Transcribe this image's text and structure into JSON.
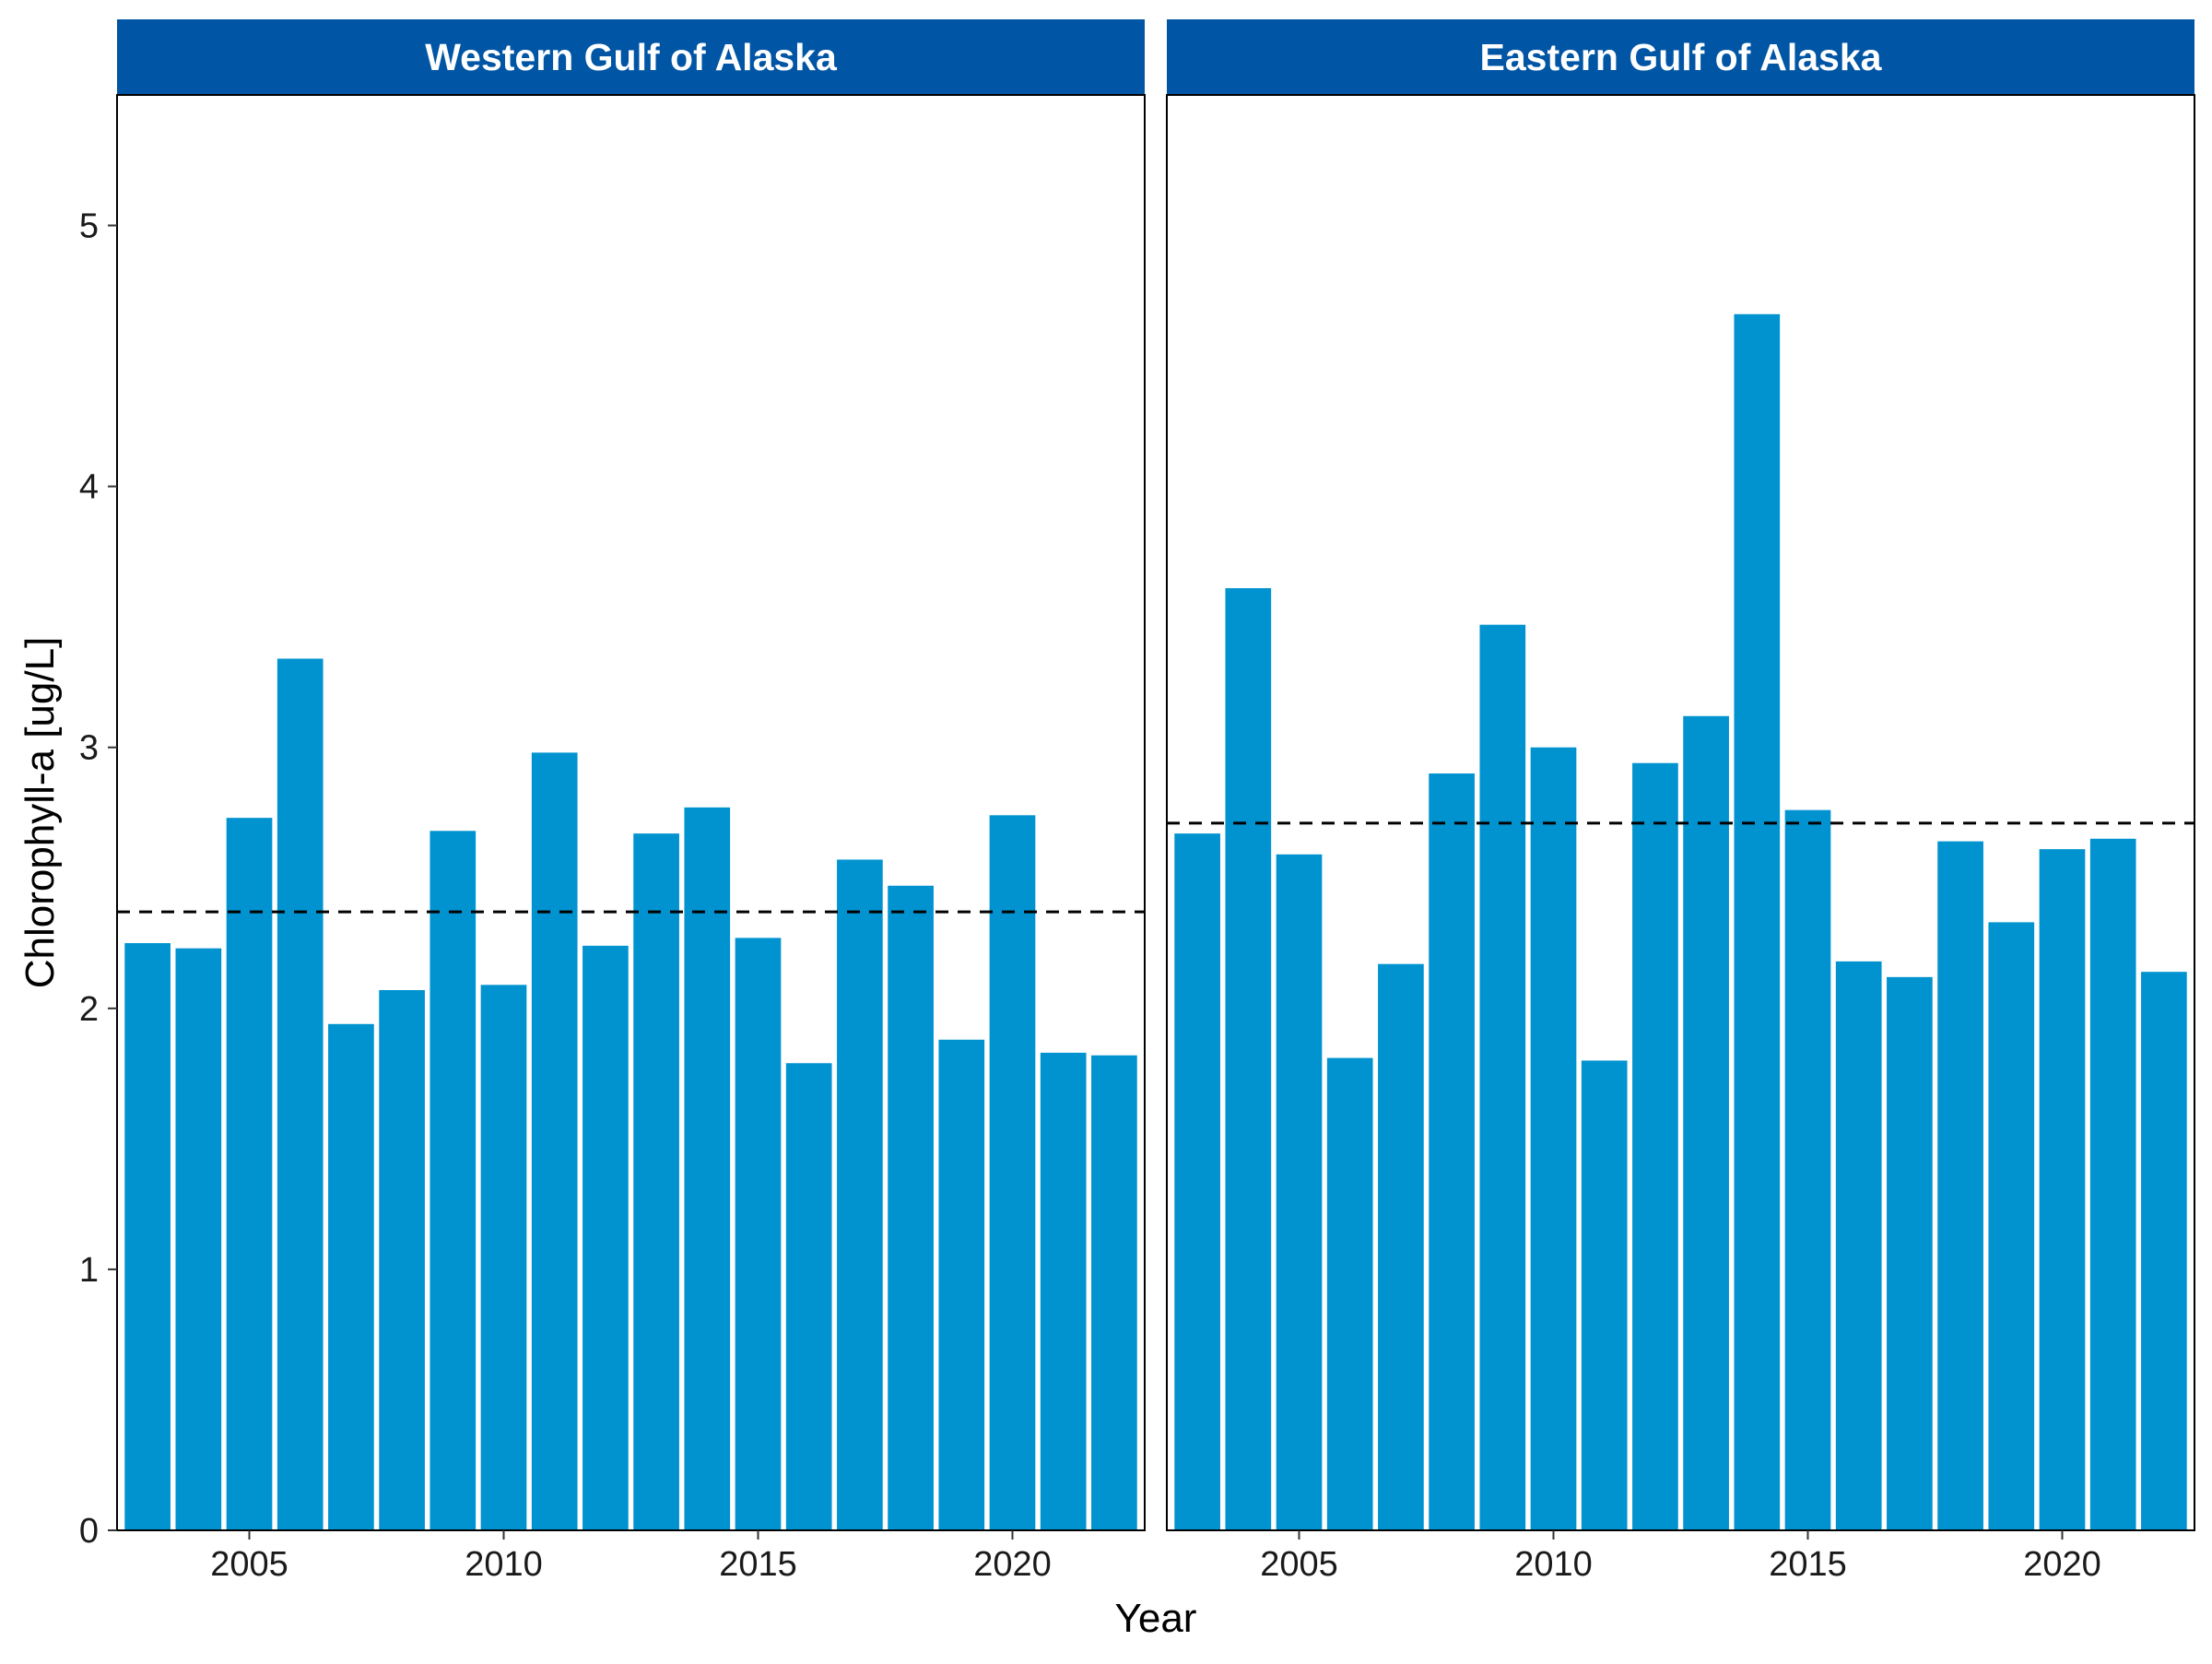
{
  "colors": {
    "bar": "#0093D0",
    "strip_background": "#0055A4",
    "strip_text": "#FFFFFF",
    "mean_line": "#000000",
    "panel_border": "#000000",
    "background": "#FFFFFF"
  },
  "chart_data": {
    "type": "bar",
    "xlabel": "Year",
    "ylabel": "Chlorophyll-a [ug/L]",
    "ylim": [
      0,
      5.5
    ],
    "y_ticks": [
      "0",
      "1",
      "2",
      "3",
      "4",
      "5"
    ],
    "x_ticks": [
      "2005",
      "2010",
      "2015",
      "2020"
    ],
    "xlim": [
      2002.4,
      2022.6
    ],
    "grid": false,
    "mean_line_style": "dashed",
    "panels": [
      {
        "title": "Western Gulf of Alaska",
        "x": [
          2003,
          2004,
          2005,
          2006,
          2007,
          2008,
          2009,
          2010,
          2011,
          2012,
          2013,
          2014,
          2015,
          2016,
          2017,
          2018,
          2019,
          2020,
          2021,
          2022
        ],
        "values": [
          2.25,
          2.23,
          2.73,
          3.34,
          1.94,
          2.07,
          2.68,
          2.09,
          2.98,
          2.24,
          2.67,
          2.77,
          2.27,
          1.79,
          2.57,
          2.47,
          1.88,
          2.74,
          1.83,
          1.82
        ],
        "mean": 2.37
      },
      {
        "title": "Eastern Gulf of Alaska",
        "x": [
          2003,
          2004,
          2005,
          2006,
          2007,
          2008,
          2009,
          2010,
          2011,
          2012,
          2013,
          2014,
          2015,
          2016,
          2017,
          2018,
          2019,
          2020,
          2021,
          2022
        ],
        "values": [
          2.67,
          3.61,
          2.59,
          1.81,
          2.17,
          2.9,
          3.47,
          3.0,
          1.8,
          2.94,
          3.12,
          4.66,
          2.76,
          2.18,
          2.12,
          2.64,
          2.33,
          2.61,
          2.65,
          2.14
        ],
        "mean": 2.71
      }
    ]
  }
}
